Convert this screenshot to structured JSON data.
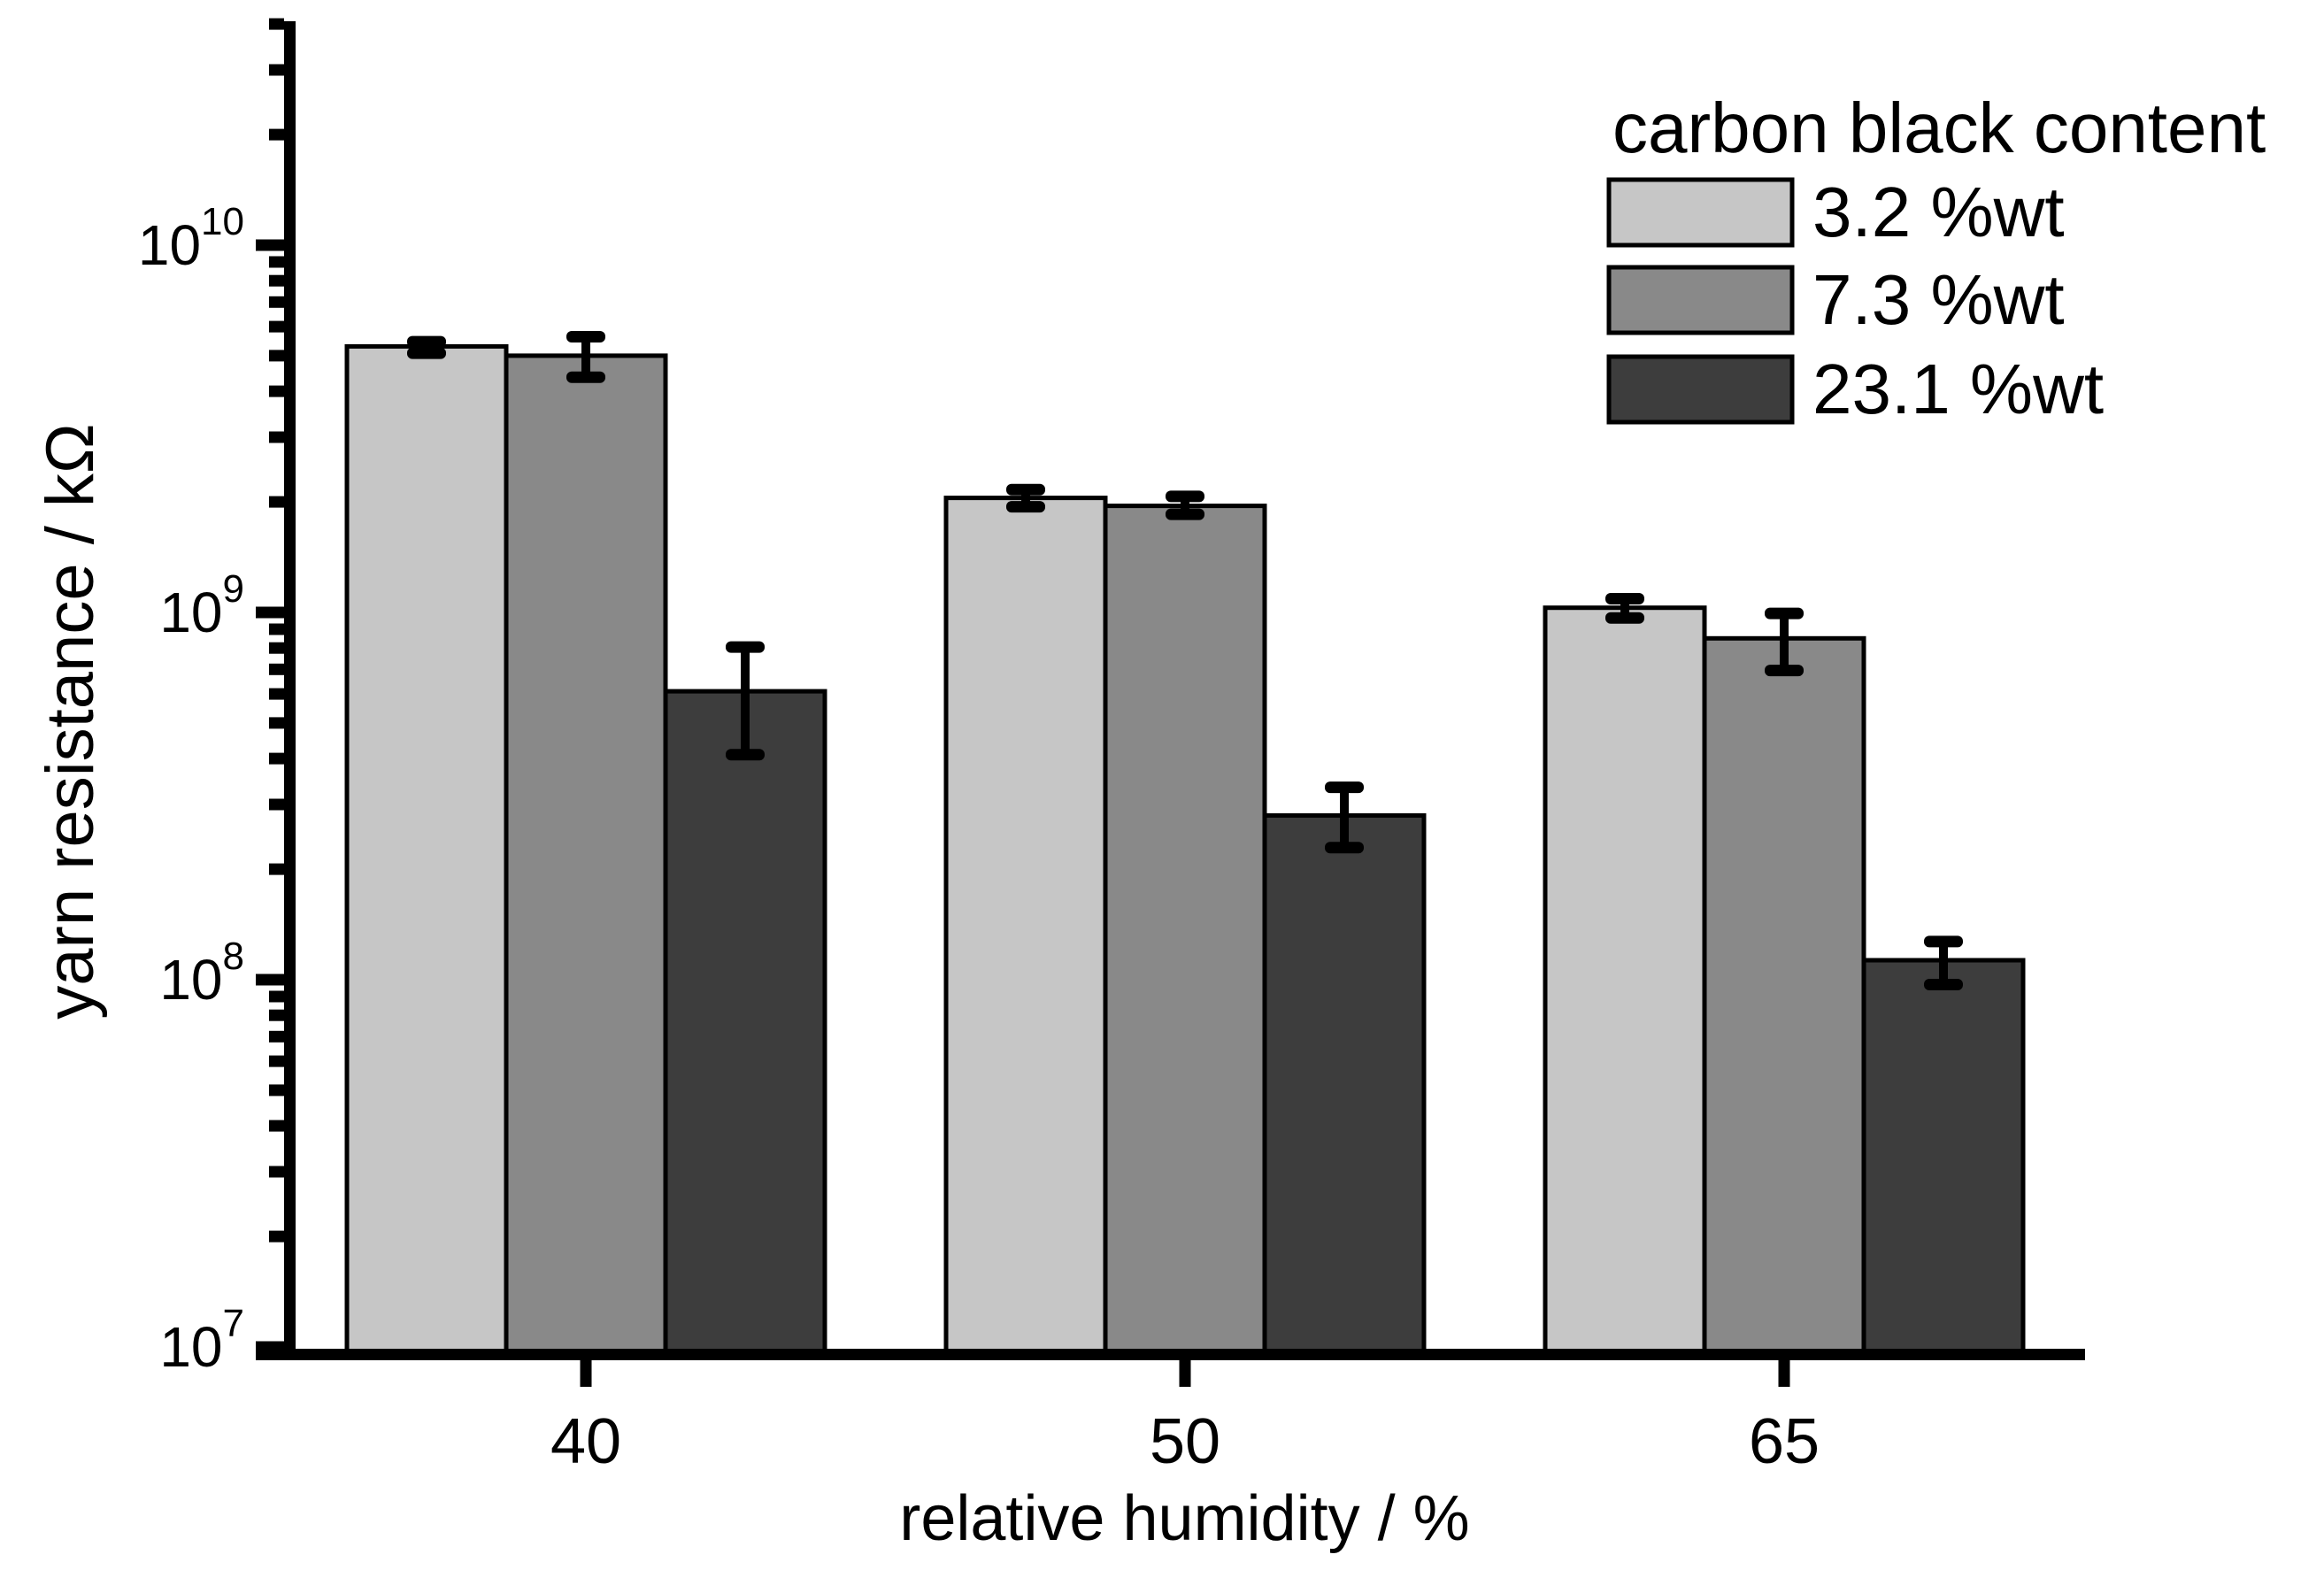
{
  "figure": {
    "background": "#ffffff",
    "axis_color": "#000000",
    "bar_outline_color": "#000000",
    "error_bar_color": "#000000"
  },
  "y_axis": {
    "title": "yarn resistance / kΩ",
    "scale": "log",
    "base_label": "10",
    "major_tick_exponents": [
      7,
      8,
      9,
      10
    ]
  },
  "x_axis": {
    "title": "relative humidity / %",
    "tick_labels": [
      "40",
      "50",
      "65"
    ]
  },
  "legend": {
    "title": "carbon black content",
    "entries": [
      {
        "label": "3.2 %wt",
        "color": "#c6c6c6"
      },
      {
        "label": "7.3 %wt",
        "color": "#898989"
      },
      {
        "label": "23.1 %wt",
        "color": "#3d3d3d"
      }
    ]
  },
  "chart_data": {
    "type": "bar",
    "title": "",
    "xlabel": "relative humidity / %",
    "ylabel": "yarn resistance / kΩ",
    "units": "kΩ",
    "categories": [
      "40",
      "50",
      "65"
    ],
    "y_scale": "log",
    "ylim": [
      10000000.0,
      40000000000.0
    ],
    "y_major_ticks": [
      10000000.0,
      100000000.0,
      1000000000.0,
      10000000000.0
    ],
    "grid": false,
    "legend_position": "top-right",
    "error_bars": true,
    "series": [
      {
        "name": "3.2 %wt",
        "color": "#c6c6c6",
        "values": [
          5300000000.0,
          2050000000.0,
          1030000000.0
        ],
        "err_plus": [
          160000000.0,
          110000000.0,
          60000000.0
        ],
        "err_minus": [
          220000000.0,
          110000000.0,
          64000000.0
        ]
      },
      {
        "name": "7.3 %wt",
        "color": "#898989",
        "values": [
          5000000000.0,
          1950000000.0,
          850000000.0
        ],
        "err_plus": [
          630000000.0,
          120000000.0,
          144000000.0
        ],
        "err_minus": [
          630000000.0,
          100000000.0,
          155000000.0
        ]
      },
      {
        "name": "23.1 %wt",
        "color": "#3d3d3d",
        "values": [
          610000000.0,
          280000000.0,
          113000000.0
        ],
        "err_plus": [
          195000000.0,
          54000000.0,
          14000000.0
        ],
        "err_minus": [
          200000000.0,
          51000000.0,
          16000000.0
        ]
      }
    ]
  }
}
